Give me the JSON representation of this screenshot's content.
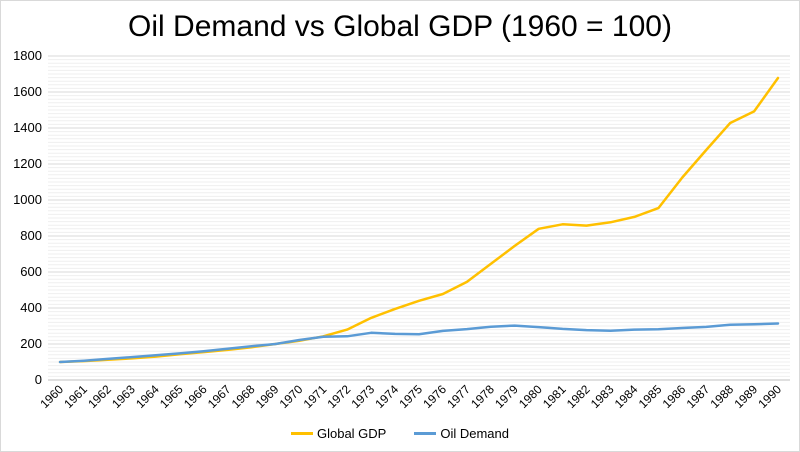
{
  "chart_data": {
    "type": "line",
    "title": "Oil Demand vs Global GDP (1960 = 100)",
    "xlabel": "",
    "ylabel": "",
    "ylim": [
      0,
      1800
    ],
    "yticks": [
      0,
      200,
      400,
      600,
      800,
      1000,
      1200,
      1400,
      1600,
      1800
    ],
    "categories": [
      "1960",
      "1961",
      "1962",
      "1963",
      "1964",
      "1965",
      "1966",
      "1967",
      "1968",
      "1969",
      "1970",
      "1971",
      "1972",
      "1973",
      "1974",
      "1975",
      "1976",
      "1977",
      "1978",
      "1979",
      "1980",
      "1981",
      "1982",
      "1983",
      "1984",
      "1985",
      "1986",
      "1987",
      "1988",
      "1989",
      "1990"
    ],
    "grid": true,
    "legend_position": "bottom",
    "series": [
      {
        "name": "Global GDP",
        "color": "#FFC000",
        "values": [
          100,
          105,
          113,
          120,
          130,
          143,
          155,
          167,
          182,
          200,
          218,
          243,
          280,
          345,
          395,
          440,
          478,
          545,
          645,
          745,
          840,
          865,
          858,
          876,
          906,
          955,
          1125,
          1278,
          1428,
          1492,
          1678
        ]
      },
      {
        "name": "Oil Demand",
        "color": "#5B9BD5",
        "values": [
          100,
          107,
          117,
          127,
          138,
          148,
          160,
          174,
          188,
          200,
          222,
          240,
          243,
          262,
          256,
          254,
          273,
          283,
          296,
          302,
          294,
          284,
          277,
          274,
          280,
          282,
          289,
          295,
          307,
          310,
          314
        ]
      }
    ]
  }
}
